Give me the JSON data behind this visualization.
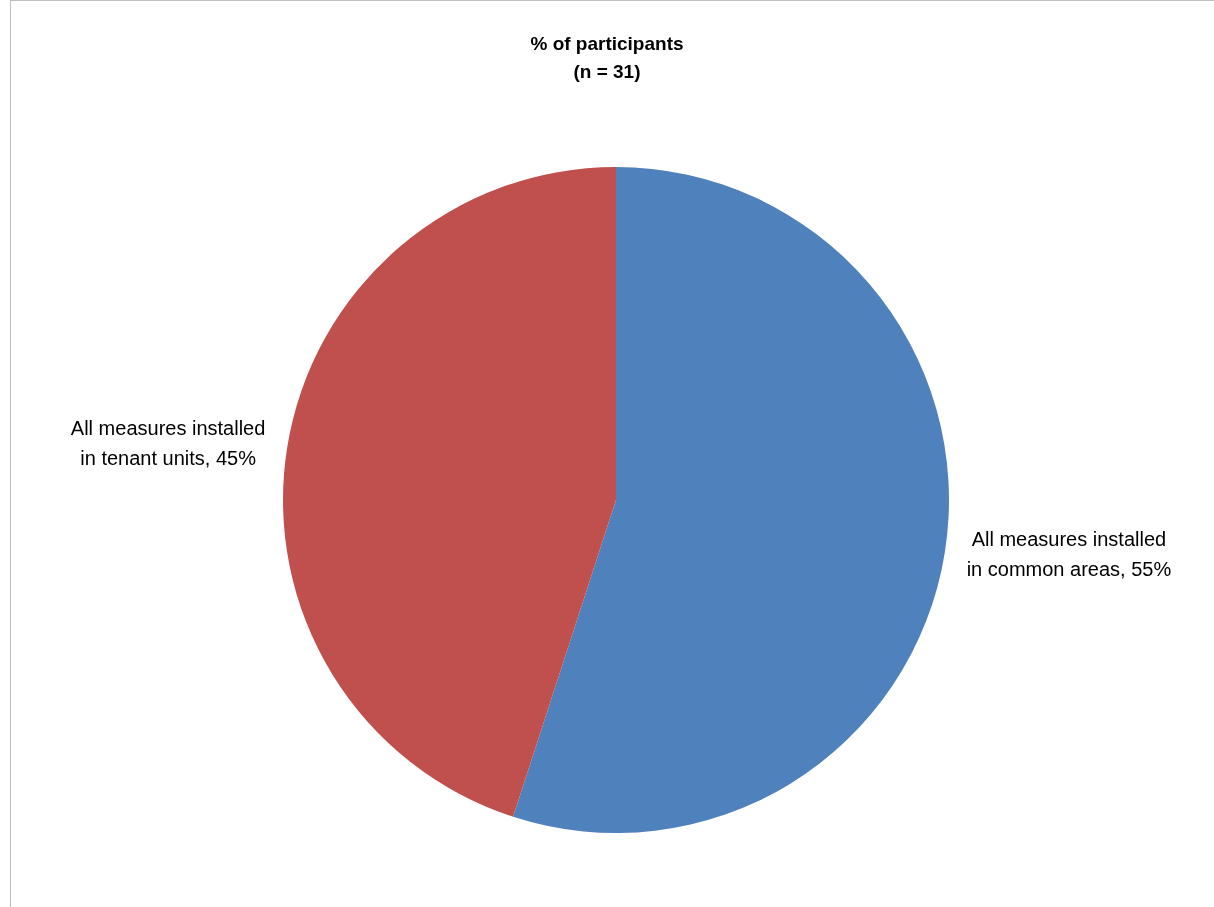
{
  "chart_data": {
    "type": "pie",
    "title": "% of participants",
    "subtitle": "(n = 31)",
    "categories": [
      "All measures installed in common areas",
      "All measures installed in tenant units"
    ],
    "values": [
      55,
      45
    ],
    "colors": [
      "#4f81bd",
      "#c0504d"
    ],
    "value_labels": [
      "55%",
      "45%"
    ],
    "legend": false
  }
}
